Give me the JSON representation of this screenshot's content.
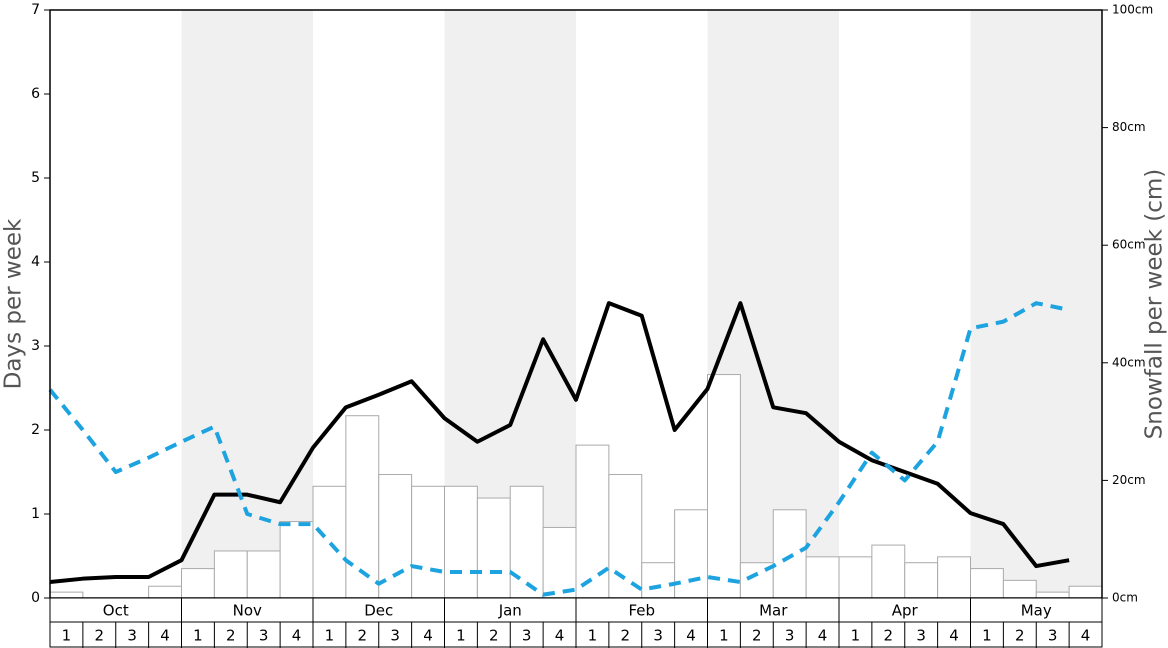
{
  "chart_data": {
    "type": "bar",
    "y_label": "Days per week",
    "y2_label": "Snowfall per week (cm)",
    "months": [
      "Oct",
      "Nov",
      "Dec",
      "Jan",
      "Feb",
      "Mar",
      "Apr",
      "May"
    ],
    "categories": [
      1,
      2,
      3,
      4,
      1,
      2,
      3,
      4,
      1,
      2,
      3,
      4,
      1,
      2,
      3,
      4,
      1,
      2,
      3,
      4,
      1,
      2,
      3,
      4,
      1,
      2,
      3,
      4,
      1,
      2,
      3,
      4
    ],
    "ylim": [
      0,
      7
    ],
    "yticks": [
      0,
      1,
      2,
      3,
      4,
      5,
      6,
      7
    ],
    "y2lim": [
      0,
      100
    ],
    "y2ticks": [
      {
        "value": 0,
        "label": "0cm"
      },
      {
        "value": 20,
        "label": "20cm"
      },
      {
        "value": 40,
        "label": "40cm"
      },
      {
        "value": 60,
        "label": "60cm"
      },
      {
        "value": 80,
        "label": "80cm"
      },
      {
        "value": 100,
        "label": "100cm"
      }
    ],
    "series": [
      {
        "kind": "bar",
        "axis": "y2",
        "color": "#ffffff",
        "stroke": "#aaaaaa",
        "values": [
          1,
          0,
          0,
          2,
          5,
          8,
          8,
          13,
          19,
          31,
          21,
          19,
          19,
          17,
          19,
          12,
          26,
          21,
          6,
          15,
          38,
          6,
          15,
          7,
          7,
          9,
          6,
          7,
          5,
          3,
          1,
          2
        ]
      },
      {
        "kind": "line",
        "color": "#000000",
        "dashed": false,
        "values": [
          0.19,
          0.23,
          0.25,
          0.25,
          0.45,
          1.23,
          1.23,
          1.14,
          1.79,
          2.27,
          2.42,
          2.58,
          2.14,
          1.86,
          2.06,
          3.08,
          2.36,
          3.51,
          3.36,
          2.0,
          2.49,
          3.51,
          2.27,
          2.2,
          1.86,
          1.64,
          1.5,
          1.36,
          1.01,
          0.88,
          0.38,
          0.45
        ]
      },
      {
        "kind": "line",
        "color": "#1ca3e0",
        "dashed": true,
        "values": [
          2.48,
          2.0,
          1.5,
          1.67,
          1.86,
          2.04,
          1.0,
          0.88,
          0.88,
          0.45,
          0.17,
          0.38,
          0.31,
          0.31,
          0.31,
          0.04,
          0.1,
          0.36,
          0.1,
          0.17,
          0.25,
          0.19,
          0.38,
          0.6,
          1.14,
          1.73,
          1.4,
          1.86,
          3.21,
          3.29,
          3.51,
          3.43
        ]
      }
    ]
  }
}
